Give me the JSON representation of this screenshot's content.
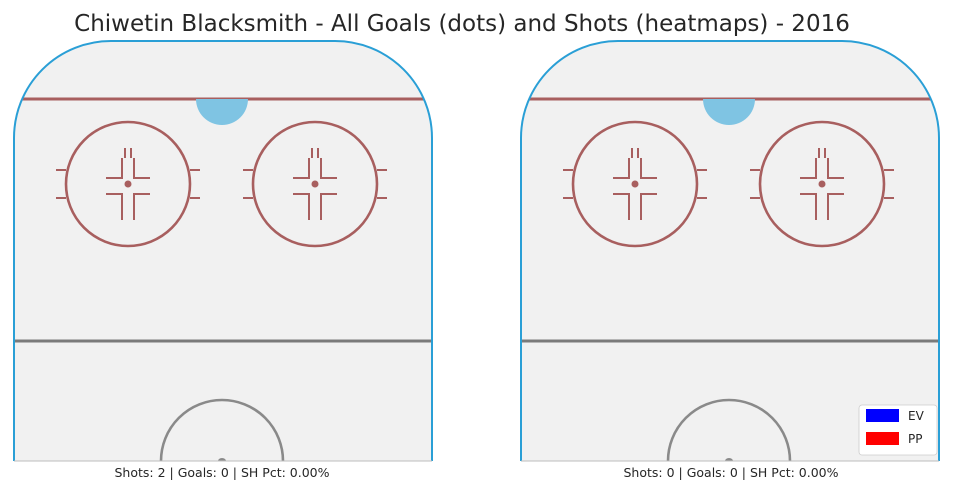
{
  "title": "Chiwetin Blacksmith - All Goals (dots) and Shots (heatmaps) - 2016",
  "colors": {
    "background": "#ffffff",
    "ice": "#f1f1f1",
    "boards": "#2a9fd6",
    "goal_line": "#a85f5f",
    "faceoff": "#a85f5f",
    "crease": "#7fc4e3",
    "blue_line": "#7b7b7b",
    "center_circle": "#8a8a8a",
    "ev": "#0000ff",
    "pp": "#ff0000"
  },
  "chart_data": [
    {
      "type": "heatmap",
      "panel": "left",
      "caption": "Shots: 2 | Goals: 0 | SH Pct: 0.00%",
      "stats": {
        "shots": 2,
        "goals": 0,
        "sh_pct": "0.00%"
      },
      "goals": [],
      "shots_heatmap": []
    },
    {
      "type": "heatmap",
      "panel": "right",
      "caption": "Shots: 0 | Goals: 0 | SH Pct: 0.00%",
      "stats": {
        "shots": 0,
        "goals": 0,
        "sh_pct": "0.00%"
      },
      "goals": [],
      "shots_heatmap": []
    }
  ],
  "legend": {
    "placement": "bottom-right",
    "items": [
      {
        "label": "EV",
        "color": "#0000ff"
      },
      {
        "label": "PP",
        "color": "#ff0000"
      }
    ]
  }
}
